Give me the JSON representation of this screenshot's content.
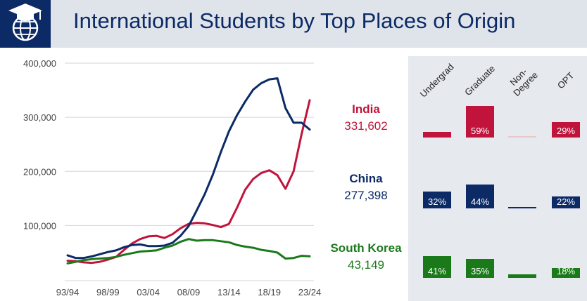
{
  "header": {
    "title": "International Students by Top Places of Origin"
  },
  "icons": {
    "logo": "graduation-cap-globe-icon"
  },
  "colors": {
    "india": "#c0143c",
    "china": "#0b2a66",
    "korea": "#1a7a1a",
    "header_bg": "#dfe3ea",
    "logo_bg": "#0b2a66"
  },
  "countries": [
    {
      "name": "India",
      "value": "331,602",
      "color": "#c0143c"
    },
    {
      "name": "China",
      "value": "277,398",
      "color": "#0b2a66"
    },
    {
      "name": "South Korea",
      "value": "43,149",
      "color": "#1a7a1a"
    }
  ],
  "breakdown": {
    "headers": [
      "Undergrad",
      "Graduate",
      "Non-\nDegree",
      "OPT"
    ],
    "rows": [
      {
        "country": "India",
        "values": [
          11,
          59,
          1,
          29
        ],
        "labels": [
          "",
          "59%",
          "",
          "29%"
        ]
      },
      {
        "country": "China",
        "values": [
          32,
          44,
          2,
          22
        ],
        "labels": [
          "32%",
          "44%",
          "",
          "22%"
        ]
      },
      {
        "country": "South Korea",
        "values": [
          41,
          35,
          6,
          18
        ],
        "labels": [
          "41%",
          "35%",
          "",
          "18%"
        ]
      }
    ]
  },
  "chart_data": {
    "type": "line",
    "x": [
      "93/94",
      "94/95",
      "95/96",
      "96/97",
      "97/98",
      "98/99",
      "99/00",
      "00/01",
      "01/02",
      "02/03",
      "03/04",
      "04/05",
      "05/06",
      "06/07",
      "07/08",
      "08/09",
      "09/10",
      "10/11",
      "11/12",
      "12/13",
      "13/14",
      "14/15",
      "15/16",
      "16/17",
      "17/18",
      "18/19",
      "19/20",
      "20/21",
      "21/22",
      "22/23",
      "23/24"
    ],
    "xticks": [
      "93/94",
      "98/99",
      "03/04",
      "08/09",
      "13/14",
      "18/19",
      "23/24"
    ],
    "yticks": [
      "100,000",
      "200,000",
      "300,000",
      "400,000"
    ],
    "ylim": [
      15000,
      400000
    ],
    "series": [
      {
        "name": "India",
        "color": "#c0143c",
        "values": [
          35000,
          34000,
          32000,
          31000,
          33000,
          37000,
          42000,
          55000,
          67000,
          75000,
          80000,
          81000,
          77000,
          84000,
          95000,
          103000,
          105000,
          104000,
          101000,
          97000,
          103000,
          133000,
          166000,
          186000,
          197000,
          202000,
          193000,
          168000,
          200000,
          269000,
          331602
        ]
      },
      {
        "name": "China",
        "color": "#0b2a66",
        "values": [
          45000,
          40000,
          40000,
          43000,
          47000,
          51000,
          54000,
          60000,
          64000,
          65000,
          62000,
          62000,
          63000,
          68000,
          81000,
          99000,
          128000,
          158000,
          194000,
          236000,
          274000,
          304000,
          329000,
          351000,
          363000,
          370000,
          372000,
          317000,
          290000,
          290000,
          277398
        ]
      },
      {
        "name": "South Korea",
        "color": "#1a7a1a",
        "values": [
          30000,
          33000,
          36000,
          38000,
          39000,
          40000,
          42000,
          46000,
          49000,
          52000,
          53000,
          54000,
          59000,
          63000,
          70000,
          75000,
          72000,
          73000,
          73000,
          71000,
          69000,
          64000,
          61000,
          59000,
          55000,
          53000,
          50000,
          39000,
          40000,
          44000,
          43149
        ]
      }
    ]
  }
}
